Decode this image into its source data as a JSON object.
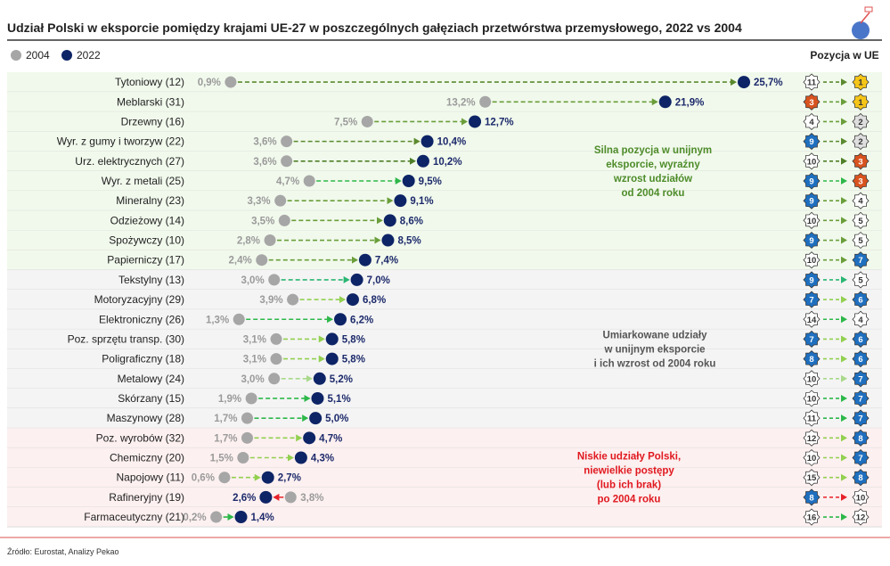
{
  "chart_data": {
    "type": "dumbbell",
    "title": "Udział Polski w eksporcie pomiędzy krajami UE-27 w poszczególnych gałęziach przetwórstwa przemysłowego, 2022 vs 2004",
    "legend": [
      {
        "name": "2004",
        "color": "#a6a6a6"
      },
      {
        "name": "2022",
        "color": "#0d2466"
      }
    ],
    "legend_placement": "top-left",
    "position_header": "Pozycja w UE",
    "unit": "%",
    "xlim": [
      0,
      26
    ],
    "rows": [
      {
        "label": "Tytoniowy (12)",
        "v2004": 0.9,
        "v2022": 25.7,
        "t2004": "0,9%",
        "t2022": "25,7%",
        "arrow": "#5b8a2e",
        "pos2004": 11,
        "pos2022": 1,
        "group": "green"
      },
      {
        "label": "Meblarski (31)",
        "v2004": 13.2,
        "v2022": 21.9,
        "t2004": "13,2%",
        "t2022": "21,9%",
        "arrow": "#6a9e3a",
        "pos2004": 3,
        "pos2022": 1,
        "group": "green"
      },
      {
        "label": "Drzewny (16)",
        "v2004": 7.5,
        "v2022": 12.7,
        "t2004": "7,5%",
        "t2022": "12,7%",
        "arrow": "#6a9e3a",
        "pos2004": 4,
        "pos2022": 2,
        "group": "green"
      },
      {
        "label": "Wyr. z gumy i tworzyw (22)",
        "v2004": 3.6,
        "v2022": 10.4,
        "t2004": "3,6%",
        "t2022": "10,4%",
        "arrow": "#5b8a2e",
        "pos2004": 9,
        "pos2022": 2,
        "group": "green"
      },
      {
        "label": "Urz. elektrycznych (27)",
        "v2004": 3.6,
        "v2022": 10.2,
        "t2004": "3,6%",
        "t2022": "10,2%",
        "arrow": "#4f7f28",
        "pos2004": 10,
        "pos2022": 3,
        "group": "green"
      },
      {
        "label": "Wyr. z metali (25)",
        "v2004": 4.7,
        "v2022": 9.5,
        "t2004": "4,7%",
        "t2022": "9,5%",
        "arrow": "#2db84a",
        "pos2004": 9,
        "pos2022": 3,
        "group": "green"
      },
      {
        "label": "Mineralny (23)",
        "v2004": 3.3,
        "v2022": 9.1,
        "t2004": "3,3%",
        "t2022": "9,1%",
        "arrow": "#6a9e3a",
        "pos2004": 9,
        "pos2022": 4,
        "group": "green"
      },
      {
        "label": "Odzieżowy (14)",
        "v2004": 3.5,
        "v2022": 8.6,
        "t2004": "3,5%",
        "t2022": "8,6%",
        "arrow": "#6a9e3a",
        "pos2004": 10,
        "pos2022": 5,
        "group": "green"
      },
      {
        "label": "Spożywczy (10)",
        "v2004": 2.8,
        "v2022": 8.5,
        "t2004": "2,8%",
        "t2022": "8,5%",
        "arrow": "#6a9e3a",
        "pos2004": 9,
        "pos2022": 5,
        "group": "green"
      },
      {
        "label": "Papierniczy (17)",
        "v2004": 2.4,
        "v2022": 7.4,
        "t2004": "2,4%",
        "t2022": "7,4%",
        "arrow": "#6a9e3a",
        "pos2004": 10,
        "pos2022": 7,
        "group": "green"
      },
      {
        "label": "Tekstylny (13)",
        "v2004": 3.0,
        "v2022": 7.0,
        "t2004": "3,0%",
        "t2022": "7,0%",
        "arrow": "#2bb673",
        "pos2004": 9,
        "pos2022": 5,
        "group": "grey"
      },
      {
        "label": "Motoryzacyjny (29)",
        "v2004": 3.9,
        "v2022": 6.8,
        "t2004": "3,9%",
        "t2022": "6,8%",
        "arrow": "#92d050",
        "pos2004": 7,
        "pos2022": 6,
        "group": "grey"
      },
      {
        "label": "Elektroniczny (26)",
        "v2004": 1.3,
        "v2022": 6.2,
        "t2004": "1,3%",
        "t2022": "6,2%",
        "arrow": "#2db84a",
        "pos2004": 14,
        "pos2022": 4,
        "group": "grey"
      },
      {
        "label": "Poz. sprzętu transp. (30)",
        "v2004": 3.1,
        "v2022": 5.8,
        "t2004": "3,1%",
        "t2022": "5,8%",
        "arrow": "#92d050",
        "pos2004": 7,
        "pos2022": 6,
        "group": "grey"
      },
      {
        "label": "Poligraficzny (18)",
        "v2004": 3.1,
        "v2022": 5.8,
        "t2004": "3,1%",
        "t2022": "5,8%",
        "arrow": "#92d050",
        "pos2004": 8,
        "pos2022": 6,
        "group": "grey"
      },
      {
        "label": "Metalowy (24)",
        "v2004": 3.0,
        "v2022": 5.2,
        "t2004": "3,0%",
        "t2022": "5,2%",
        "arrow": "#a9d98a",
        "pos2004": 10,
        "pos2022": 7,
        "group": "grey"
      },
      {
        "label": "Skórzany (15)",
        "v2004": 1.9,
        "v2022": 5.1,
        "t2004": "1,9%",
        "t2022": "5,1%",
        "arrow": "#2db84a",
        "pos2004": 10,
        "pos2022": 7,
        "group": "grey"
      },
      {
        "label": "Maszynowy (28)",
        "v2004": 1.7,
        "v2022": 5.0,
        "t2004": "1,7%",
        "t2022": "5,0%",
        "arrow": "#2db84a",
        "pos2004": 11,
        "pos2022": 7,
        "group": "grey"
      },
      {
        "label": "Poz. wyrobów (32)",
        "v2004": 1.7,
        "v2022": 4.7,
        "t2004": "1,7%",
        "t2022": "4,7%",
        "arrow": "#92d050",
        "pos2004": 12,
        "pos2022": 8,
        "group": "pink"
      },
      {
        "label": "Chemiczny (20)",
        "v2004": 1.5,
        "v2022": 4.3,
        "t2004": "1,5%",
        "t2022": "4,3%",
        "arrow": "#92d050",
        "pos2004": 10,
        "pos2022": 7,
        "group": "pink"
      },
      {
        "label": "Napojowy (11)",
        "v2004": 0.6,
        "v2022": 2.7,
        "t2004": "0,6%",
        "t2022": "2,7%",
        "arrow": "#92d050",
        "pos2004": 15,
        "pos2022": 8,
        "group": "pink"
      },
      {
        "label": "Rafineryjny (19)",
        "v2004": 3.8,
        "v2022": 2.6,
        "t2004": "3,8%",
        "t2022": "2,6%",
        "arrow": "#e8202a",
        "pos2004": 8,
        "pos2022": 10,
        "group": "pink"
      },
      {
        "label": "Farmaceutyczny (21)",
        "v2004": 0.2,
        "v2022": 1.4,
        "t2004": "0,2%",
        "t2022": "1,4%",
        "arrow": "#2db84a",
        "pos2004": 16,
        "pos2022": 12,
        "group": "pink"
      }
    ],
    "annotations": [
      {
        "lines": [
          "Silna pozycja w unijnym",
          "eksporcie, wyraźny",
          "wzrost udziałów",
          "od 2004 roku"
        ],
        "color": "#4e8c2a",
        "group": "green"
      },
      {
        "lines": [
          "Umiarkowane udziały",
          "w unijnym eksporcie",
          "i ich wzrost od 2004 roku"
        ],
        "color": "#555555",
        "group": "grey"
      },
      {
        "lines": [
          "Niskie udziały Polski,",
          "niewielkie postępy",
          "(lub ich brak)",
          "po 2004 roku"
        ],
        "color": "#e0181f",
        "group": "pink"
      }
    ],
    "group_colors": {
      "green": "#f1f9ec",
      "grey": "#f4f4f4",
      "pink": "#fdf0f0"
    },
    "badge_colors": {
      "gold": "#f5c518",
      "silver": "#dedede",
      "bronze": "#d8531f",
      "blue": "#1f6fbf",
      "plain": "#ffffff"
    },
    "source": "Źródło: Eurostat, Analizy Pekao"
  }
}
